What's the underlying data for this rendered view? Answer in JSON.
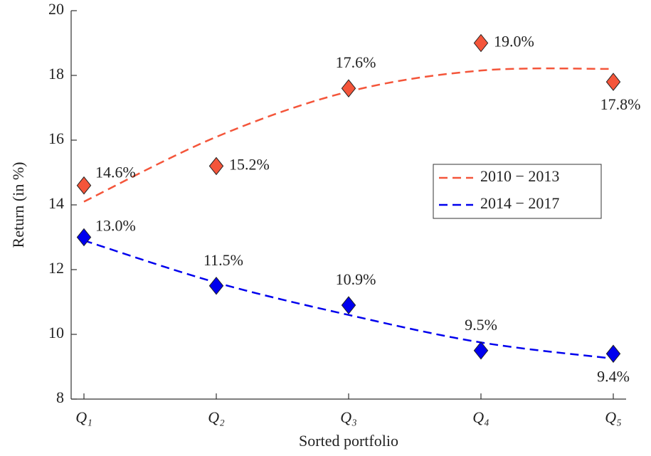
{
  "chart_data": {
    "type": "scatter-fit",
    "xlabel": "Sorted portfolio",
    "ylabel": "Return (in %)",
    "categories": [
      "Q₁",
      "Q₂",
      "Q₃",
      "Q₄",
      "Q₅"
    ],
    "ylim": [
      8,
      20
    ],
    "yticks": [
      8,
      10,
      12,
      14,
      16,
      18,
      20
    ],
    "legend": "east",
    "series": [
      {
        "name": "2010 − 2013",
        "color": "#f4553a",
        "values": [
          14.6,
          15.2,
          17.6,
          19.0,
          17.8
        ],
        "value_labels": [
          "14.6%",
          "15.2%",
          "17.6%",
          "19.0%",
          "17.8%"
        ],
        "fit": [
          14.1,
          16.1,
          17.5,
          18.15,
          18.2
        ]
      },
      {
        "name": "2014 − 2017",
        "color": "#0000ee",
        "values": [
          13.0,
          11.5,
          10.9,
          9.5,
          9.4
        ],
        "value_labels": [
          "13.0%",
          "11.5%",
          "10.9%",
          "9.5%",
          "9.4%"
        ],
        "fit": [
          12.9,
          11.6,
          10.6,
          9.75,
          9.25
        ]
      }
    ]
  }
}
